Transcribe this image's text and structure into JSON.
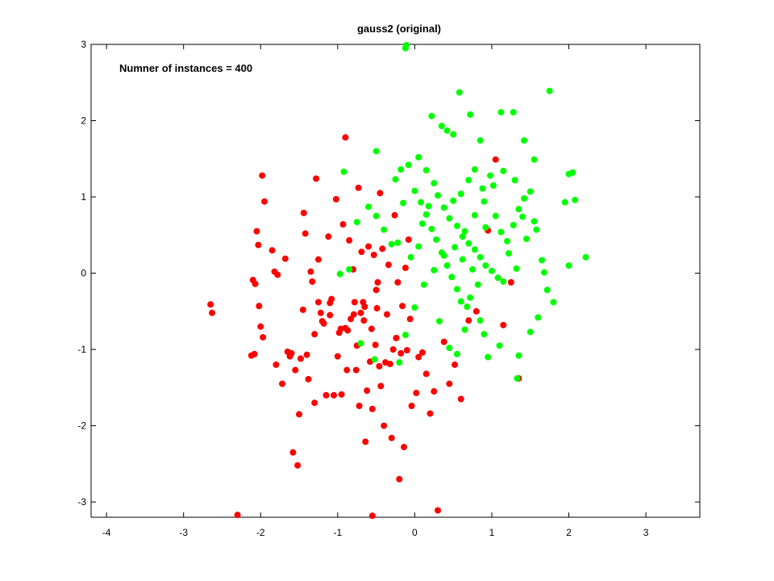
{
  "chart_data": {
    "type": "scatter",
    "title": "gauss2 (original)",
    "annotation": "Numner of instances = 400",
    "xlabel": "",
    "ylabel": "",
    "xlim": [
      -4.2,
      3.7
    ],
    "ylim": [
      -3.2,
      3.0
    ],
    "xticks": [
      -4,
      -3,
      -2,
      -1,
      0,
      1,
      2,
      3
    ],
    "yticks": [
      -3,
      -2,
      -1,
      0,
      1,
      2,
      3
    ],
    "grid": false,
    "colors": {
      "class_a": "#ff0000",
      "class_b": "#00ff00"
    },
    "series": [
      {
        "color": "#ff0000",
        "points": [
          [
            -2.65,
            -0.41
          ],
          [
            -2.63,
            -0.52
          ],
          [
            -2.3,
            -3.17
          ],
          [
            -2.12,
            -1.08
          ],
          [
            -2.08,
            -1.06
          ],
          [
            -2.1,
            -0.09
          ],
          [
            -2.07,
            -0.14
          ],
          [
            -2.05,
            0.55
          ],
          [
            -2.03,
            0.37
          ],
          [
            -2.02,
            -0.43
          ],
          [
            -2.0,
            -0.7
          ],
          [
            -1.97,
            -0.84
          ],
          [
            -1.95,
            0.94
          ],
          [
            -1.98,
            1.28
          ],
          [
            -1.85,
            0.3
          ],
          [
            -1.82,
            0.02
          ],
          [
            -1.78,
            -0.02
          ],
          [
            -1.8,
            -1.2
          ],
          [
            -1.72,
            -1.45
          ],
          [
            -1.68,
            0.19
          ],
          [
            -1.65,
            -1.03
          ],
          [
            -1.62,
            -1.09
          ],
          [
            -1.6,
            -1.05
          ],
          [
            -1.58,
            -2.35
          ],
          [
            -1.55,
            -1.27
          ],
          [
            -1.52,
            -2.52
          ],
          [
            -1.5,
            -1.85
          ],
          [
            -1.48,
            -1.12
          ],
          [
            -1.45,
            -0.48
          ],
          [
            -1.44,
            0.79
          ],
          [
            -1.42,
            0.52
          ],
          [
            -1.4,
            -1.07
          ],
          [
            -1.38,
            -1.39
          ],
          [
            -1.35,
            0.02
          ],
          [
            -1.33,
            -0.11
          ],
          [
            -1.3,
            -0.8
          ],
          [
            -1.3,
            -1.7
          ],
          [
            -1.28,
            1.24
          ],
          [
            -1.25,
            -0.38
          ],
          [
            -1.22,
            -0.52
          ],
          [
            -1.2,
            -0.63
          ],
          [
            -1.18,
            -0.66
          ],
          [
            -1.15,
            -1.6
          ],
          [
            -1.12,
            0.48
          ],
          [
            -1.1,
            -0.39
          ],
          [
            -1.08,
            -0.34
          ],
          [
            -1.05,
            -1.6
          ],
          [
            -1.02,
            0.97
          ],
          [
            -1.0,
            -1.09
          ],
          [
            -0.98,
            -0.78
          ],
          [
            -0.96,
            -0.73
          ],
          [
            -0.95,
            -1.59
          ],
          [
            -0.93,
            0.64
          ],
          [
            -0.9,
            1.78
          ],
          [
            -0.88,
            -1.27
          ],
          [
            -0.87,
            -0.75
          ],
          [
            -0.85,
            0.43
          ],
          [
            -0.83,
            -0.6
          ],
          [
            -0.8,
            0.05
          ],
          [
            -0.79,
            -0.54
          ],
          [
            -0.78,
            -0.38
          ],
          [
            -0.76,
            -1.27
          ],
          [
            -0.75,
            -0.95
          ],
          [
            -0.73,
            1.12
          ],
          [
            -0.72,
            -1.74
          ],
          [
            -0.7,
            -0.52
          ],
          [
            -0.69,
            0.28
          ],
          [
            -0.67,
            -0.38
          ],
          [
            -0.66,
            -0.62
          ],
          [
            -0.64,
            -2.21
          ],
          [
            -0.62,
            -1.54
          ],
          [
            -0.6,
            0.35
          ],
          [
            -0.58,
            -1.16
          ],
          [
            -0.56,
            -0.73
          ],
          [
            -0.55,
            -1.78
          ],
          [
            -0.53,
            0.24
          ],
          [
            -0.51,
            -0.94
          ],
          [
            -0.49,
            -0.46
          ],
          [
            -0.48,
            -0.12
          ],
          [
            -0.46,
            -1.22
          ],
          [
            -0.44,
            -1.48
          ],
          [
            -0.42,
            0.32
          ],
          [
            -0.4,
            -2.0
          ],
          [
            -0.38,
            -1.17
          ],
          [
            -0.36,
            -0.54
          ],
          [
            -0.34,
            0.11
          ],
          [
            -0.32,
            -1.19
          ],
          [
            -0.3,
            -2.16
          ],
          [
            -0.28,
            -1.0
          ],
          [
            -0.26,
            0.76
          ],
          [
            -0.24,
            -0.85
          ],
          [
            -0.22,
            -0.12
          ],
          [
            -0.2,
            -2.7
          ],
          [
            -0.18,
            -1.05
          ],
          [
            -0.16,
            -0.43
          ],
          [
            -0.14,
            -2.28
          ],
          [
            -0.12,
            0.07
          ],
          [
            -0.1,
            -1.01
          ],
          [
            -0.08,
            0.44
          ],
          [
            -0.06,
            -0.6
          ],
          [
            -0.04,
            -1.74
          ],
          [
            0.02,
            -1.57
          ],
          [
            0.05,
            -1.1
          ],
          [
            0.1,
            -1.04
          ],
          [
            0.15,
            -1.32
          ],
          [
            0.2,
            -1.84
          ],
          [
            0.25,
            -1.55
          ],
          [
            0.3,
            -3.11
          ],
          [
            0.38,
            -0.9
          ],
          [
            0.45,
            -1.45
          ],
          [
            0.52,
            -1.2
          ],
          [
            0.6,
            -1.65
          ],
          [
            0.7,
            -0.62
          ],
          [
            0.8,
            -0.5
          ],
          [
            0.95,
            0.56
          ],
          [
            1.05,
            1.49
          ],
          [
            1.15,
            -0.68
          ],
          [
            1.25,
            -0.12
          ],
          [
            1.35,
            -1.38
          ],
          [
            -0.55,
            -3.18
          ],
          [
            -0.5,
            -0.22
          ],
          [
            -0.45,
            1.05
          ],
          [
            -1.1,
            -0.55
          ],
          [
            -0.9,
            -0.72
          ],
          [
            -0.65,
            -0.44
          ],
          [
            -1.25,
            0.18
          ]
        ]
      },
      {
        "color": "#00ff00",
        "points": [
          [
            -0.12,
            2.95
          ],
          [
            -0.11,
            2.99
          ],
          [
            0.22,
            2.06
          ],
          [
            0.35,
            1.93
          ],
          [
            0.42,
            1.87
          ],
          [
            0.5,
            1.82
          ],
          [
            0.58,
            2.37
          ],
          [
            0.72,
            2.08
          ],
          [
            0.85,
            1.74
          ],
          [
            1.12,
            2.11
          ],
          [
            1.28,
            2.11
          ],
          [
            1.42,
            1.74
          ],
          [
            1.55,
            1.49
          ],
          [
            1.75,
            2.39
          ],
          [
            -0.92,
            1.33
          ],
          [
            -0.5,
            1.6
          ],
          [
            -0.25,
            1.23
          ],
          [
            -0.18,
            1.36
          ],
          [
            0.05,
            1.52
          ],
          [
            0.15,
            1.35
          ],
          [
            0.25,
            1.18
          ],
          [
            0.3,
            1.02
          ],
          [
            0.38,
            0.86
          ],
          [
            0.45,
            0.72
          ],
          [
            0.55,
            0.62
          ],
          [
            0.62,
            0.48
          ],
          [
            0.7,
            0.39
          ],
          [
            0.78,
            0.31
          ],
          [
            0.85,
            0.21
          ],
          [
            0.92,
            0.1
          ],
          [
            1.0,
            0.03
          ],
          [
            1.08,
            -0.06
          ],
          [
            1.15,
            -0.11
          ],
          [
            1.2,
            0.42
          ],
          [
            1.28,
            0.63
          ],
          [
            1.35,
            0.84
          ],
          [
            1.42,
            0.98
          ],
          [
            1.5,
            1.07
          ],
          [
            1.58,
            0.57
          ],
          [
            1.65,
            0.17
          ],
          [
            1.72,
            -0.22
          ],
          [
            1.8,
            -0.38
          ],
          [
            1.95,
            0.93
          ],
          [
            2.0,
            1.3
          ],
          [
            2.05,
            1.32
          ],
          [
            2.08,
            0.96
          ],
          [
            2.0,
            0.1
          ],
          [
            2.22,
            0.21
          ],
          [
            1.6,
            -0.58
          ],
          [
            1.5,
            -0.77
          ],
          [
            1.35,
            -1.08
          ],
          [
            1.33,
            -1.38
          ],
          [
            1.1,
            -0.95
          ],
          [
            0.95,
            -1.1
          ],
          [
            0.9,
            -0.8
          ],
          [
            0.68,
            -0.44
          ],
          [
            0.6,
            -0.37
          ],
          [
            0.55,
            -0.21
          ],
          [
            0.48,
            -0.05
          ],
          [
            0.42,
            0.1
          ],
          [
            0.35,
            0.27
          ],
          [
            0.28,
            0.44
          ],
          [
            0.22,
            0.58
          ],
          [
            0.15,
            0.77
          ],
          [
            0.08,
            0.93
          ],
          [
            0.0,
            1.08
          ],
          [
            -0.08,
            1.42
          ],
          [
            -0.15,
            0.92
          ],
          [
            -0.22,
            0.4
          ],
          [
            -0.3,
            0.38
          ],
          [
            -0.4,
            0.57
          ],
          [
            -0.5,
            0.75
          ],
          [
            -0.6,
            0.87
          ],
          [
            -0.75,
            0.67
          ],
          [
            -0.85,
            0.05
          ],
          [
            -0.97,
            -0.01
          ],
          [
            -0.7,
            -0.92
          ],
          [
            -0.52,
            -1.13
          ],
          [
            -0.2,
            -1.17
          ],
          [
            -0.12,
            -0.81
          ],
          [
            0.0,
            -0.45
          ],
          [
            0.12,
            -0.15
          ],
          [
            0.25,
            0.04
          ],
          [
            0.38,
            0.23
          ],
          [
            0.52,
            0.34
          ],
          [
            0.65,
            0.55
          ],
          [
            0.78,
            0.76
          ],
          [
            0.9,
            0.94
          ],
          [
            1.02,
            1.15
          ],
          [
            1.15,
            1.34
          ],
          [
            1.3,
            1.22
          ],
          [
            0.32,
            -0.63
          ],
          [
            0.45,
            -0.98
          ],
          [
            0.55,
            -1.06
          ],
          [
            0.65,
            -0.74
          ],
          [
            0.72,
            -0.32
          ],
          [
            0.82,
            -0.15
          ],
          [
            0.92,
            0.6
          ],
          [
            1.05,
            0.75
          ],
          [
            1.12,
            0.54
          ],
          [
            1.22,
            0.26
          ],
          [
            1.32,
            0.06
          ],
          [
            1.45,
            0.45
          ],
          [
            1.55,
            0.68
          ],
          [
            1.68,
            0.01
          ],
          [
            0.6,
            1.04
          ],
          [
            0.7,
            1.22
          ],
          [
            0.78,
            1.36
          ],
          [
            0.88,
            1.11
          ],
          [
            0.98,
            1.28
          ],
          [
            0.18,
            0.88
          ],
          [
            0.1,
            0.65
          ],
          [
            0.05,
            0.35
          ],
          [
            -0.05,
            0.21
          ],
          [
            0.62,
            0.18
          ],
          [
            0.75,
            0.05
          ],
          [
            0.85,
            -0.62
          ],
          [
            0.5,
            0.95
          ],
          [
            1.4,
            0.74
          ]
        ]
      }
    ]
  }
}
